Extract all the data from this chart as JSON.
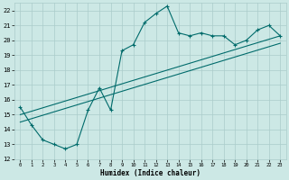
{
  "xlabel": "Humidex (Indice chaleur)",
  "bg_color": "#cce8e5",
  "grid_color": "#aaccca",
  "line_color": "#006b6b",
  "xlim": [
    -0.5,
    23.5
  ],
  "ylim": [
    12,
    22.5
  ],
  "xticks": [
    0,
    1,
    2,
    3,
    4,
    5,
    6,
    7,
    8,
    9,
    10,
    11,
    12,
    13,
    14,
    15,
    16,
    17,
    18,
    19,
    20,
    21,
    22,
    23
  ],
  "yticks": [
    12,
    13,
    14,
    15,
    16,
    17,
    18,
    19,
    20,
    21,
    22
  ],
  "main_x": [
    0,
    1,
    2,
    3,
    4,
    5,
    6,
    7,
    8,
    9,
    10,
    11,
    12,
    13,
    14,
    15,
    16,
    17,
    18,
    19,
    20,
    21,
    22,
    23
  ],
  "main_y": [
    15.5,
    14.3,
    13.3,
    13.0,
    12.7,
    13.0,
    15.3,
    16.8,
    15.3,
    19.3,
    19.7,
    21.2,
    21.8,
    22.3,
    20.5,
    20.3,
    20.5,
    20.3,
    20.3,
    19.7,
    20.0,
    20.7,
    21.0,
    20.3
  ],
  "line1_x": [
    0,
    23
  ],
  "line1_y": [
    15.0,
    20.3
  ],
  "line2_x": [
    0,
    23
  ],
  "line2_y": [
    14.5,
    19.8
  ]
}
